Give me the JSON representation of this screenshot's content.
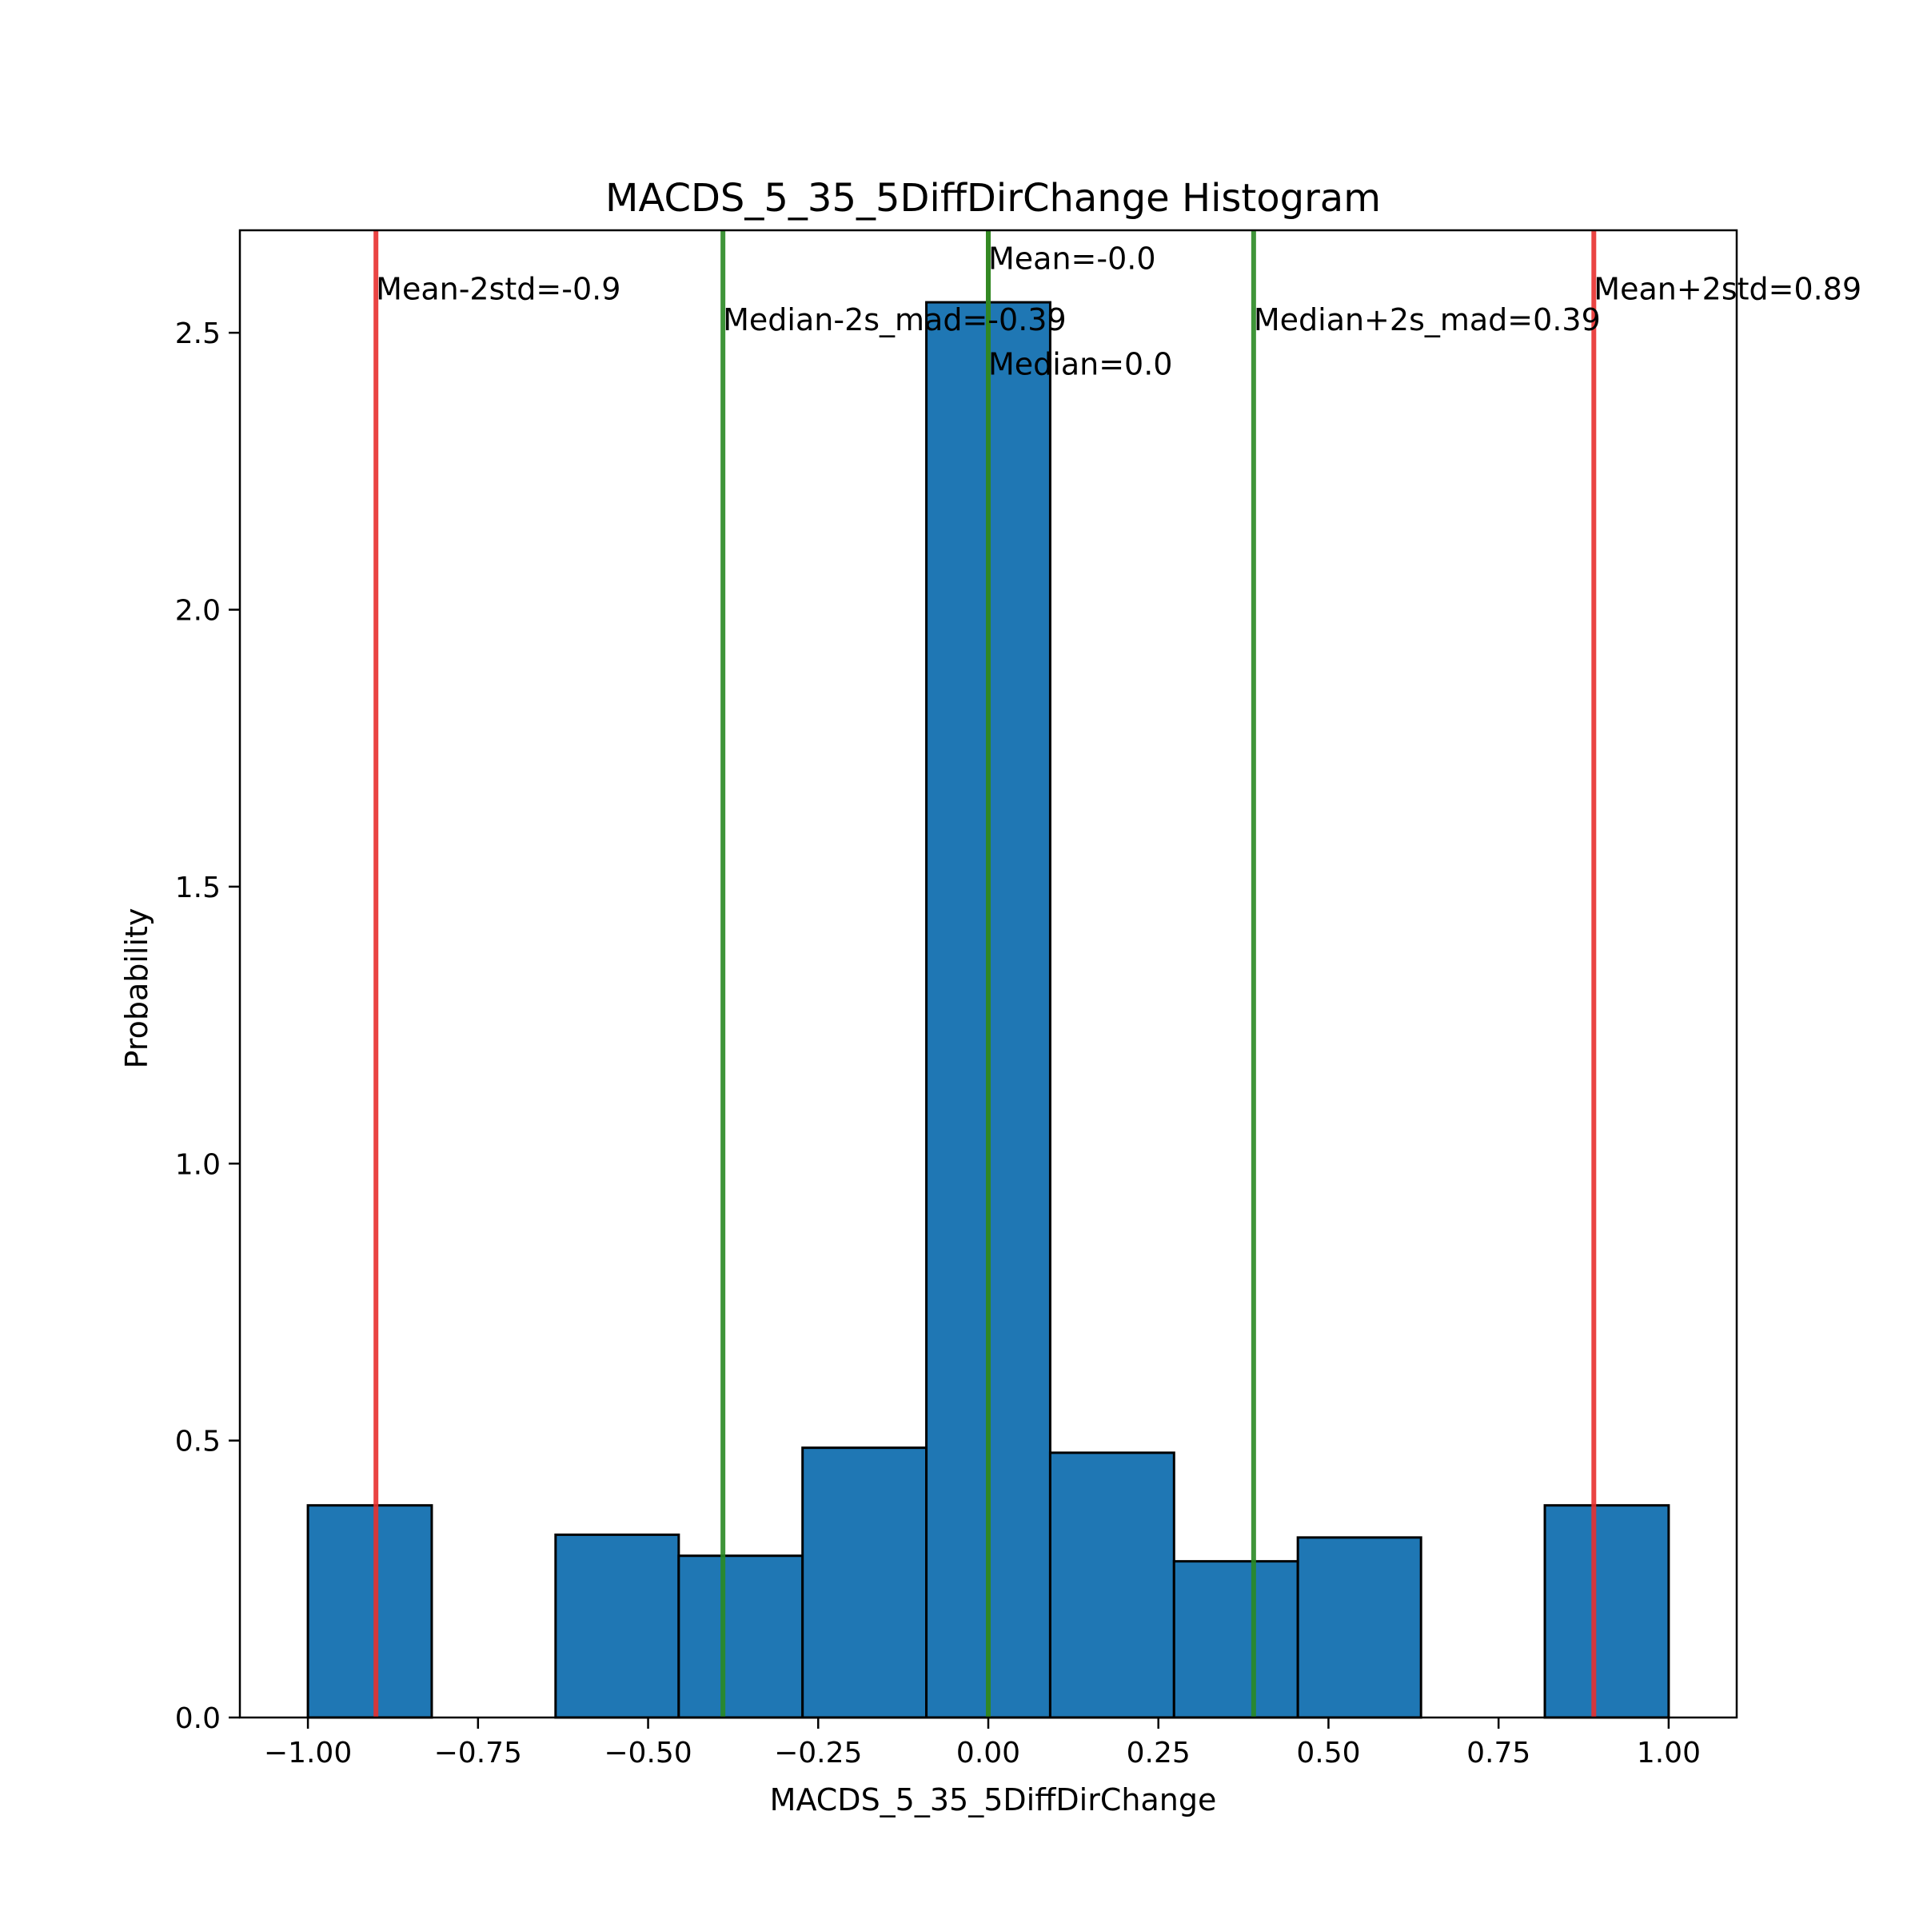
{
  "chart_data": {
    "type": "bar",
    "title": "MACDS_5_35_5DiffDirChange Histogram",
    "xlabel": "MACDS_5_35_5DiffDirChange",
    "ylabel": "Probability",
    "xlim": [
      -1.1,
      1.1
    ],
    "ylim": [
      0,
      2.685
    ],
    "grid": false,
    "bar_color": "#1f77b4",
    "bar_edge_color": "#000000",
    "xticks": [
      {
        "value": -1.0,
        "label": "−1.00"
      },
      {
        "value": -0.75,
        "label": "−0.75"
      },
      {
        "value": -0.5,
        "label": "−0.50"
      },
      {
        "value": -0.25,
        "label": "−0.25"
      },
      {
        "value": 0.0,
        "label": "0.00"
      },
      {
        "value": 0.25,
        "label": "0.25"
      },
      {
        "value": 0.5,
        "label": "0.50"
      },
      {
        "value": 0.75,
        "label": "0.75"
      },
      {
        "value": 1.0,
        "label": "1.00"
      }
    ],
    "yticks": [
      {
        "value": 0.0,
        "label": "0.0"
      },
      {
        "value": 0.5,
        "label": "0.5"
      },
      {
        "value": 1.0,
        "label": "1.0"
      },
      {
        "value": 1.5,
        "label": "1.5"
      },
      {
        "value": 2.0,
        "label": "2.0"
      },
      {
        "value": 2.5,
        "label": "2.5"
      }
    ],
    "bins": {
      "edges": [
        -1.0,
        -0.818,
        -0.636,
        -0.455,
        -0.273,
        -0.091,
        0.091,
        0.273,
        0.455,
        0.636,
        0.818,
        1.0
      ],
      "values": [
        0.383,
        0.0,
        0.33,
        0.292,
        0.487,
        2.555,
        0.478,
        0.282,
        0.325,
        0.0,
        0.383
      ]
    },
    "reference_lines": [
      {
        "x": -0.9,
        "label": "Mean-2std=-0.9",
        "color": "#e8302f",
        "label_y": 2.58
      },
      {
        "x": -0.39,
        "label": "Median-2s_mad=-0.39",
        "color": "#2a8a24",
        "label_y": 2.525
      },
      {
        "x": 0.0,
        "label": "Mean=-0.0",
        "color": "#7a6a10",
        "label_y": 2.635
      },
      {
        "x": 0.0,
        "label": "Median=0.0",
        "color": "#2a8a24",
        "label_y": 2.445
      },
      {
        "x": 0.39,
        "label": "Median+2s_mad=0.39",
        "color": "#2a8a24",
        "label_y": 2.525
      },
      {
        "x": 0.89,
        "label": "Mean+2std=0.89",
        "color": "#e8302f",
        "label_y": 2.58
      }
    ]
  }
}
